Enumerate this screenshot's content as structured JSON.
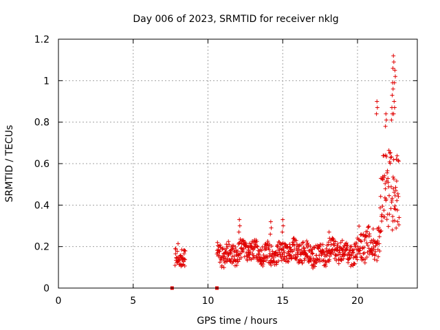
{
  "chart_data": {
    "type": "scatter",
    "title": "Day 006 of 2023, SRMTID for receiver nklg",
    "xlabel": "GPS time / hours",
    "ylabel": "SRMTID / TECUs",
    "xlim": [
      0,
      24
    ],
    "ylim": [
      0,
      1.2
    ],
    "x_ticks": [
      0,
      5,
      10,
      15,
      20
    ],
    "x_tick_labels": [
      "0",
      "5",
      "10",
      "15",
      "20"
    ],
    "y_ticks": [
      0,
      0.2,
      0.4,
      0.6,
      0.8,
      1.0,
      1.2
    ],
    "y_tick_labels": [
      "0",
      "0.2",
      "0.4",
      "0.6",
      "0.8",
      "1",
      "1.2"
    ],
    "grid": true,
    "marker": "plus",
    "color": "#e00000",
    "segments": [
      {
        "x_start": 7.8,
        "x_end": 8.5,
        "y_center": 0.16,
        "y_spread": 0.05
      },
      {
        "x_start": 10.6,
        "x_end": 20.0,
        "y_center": 0.17,
        "y_spread": 0.05
      },
      {
        "x_start": 20.0,
        "x_end": 21.5,
        "y_center": 0.22,
        "y_spread": 0.08
      },
      {
        "x_start": 21.5,
        "x_end": 22.8,
        "y_center": 0.45,
        "y_spread": 0.2
      }
    ],
    "peaks": [
      {
        "x": 12.1,
        "y": 0.33
      },
      {
        "x": 14.2,
        "y": 0.32
      },
      {
        "x": 15.0,
        "y": 0.33
      },
      {
        "x": 18.1,
        "y": 0.27
      },
      {
        "x": 21.3,
        "y": 0.9
      },
      {
        "x": 21.9,
        "y": 0.84
      },
      {
        "x": 22.4,
        "y": 1.12
      },
      {
        "x": 22.5,
        "y": 1.05
      },
      {
        "x": 22.35,
        "y": 0.99
      },
      {
        "x": 22.45,
        "y": 0.9
      },
      {
        "x": 22.3,
        "y": 0.87
      }
    ],
    "zero_markers": [
      {
        "x": 7.6,
        "y": 0
      },
      {
        "x": 10.6,
        "y": 0
      }
    ]
  }
}
